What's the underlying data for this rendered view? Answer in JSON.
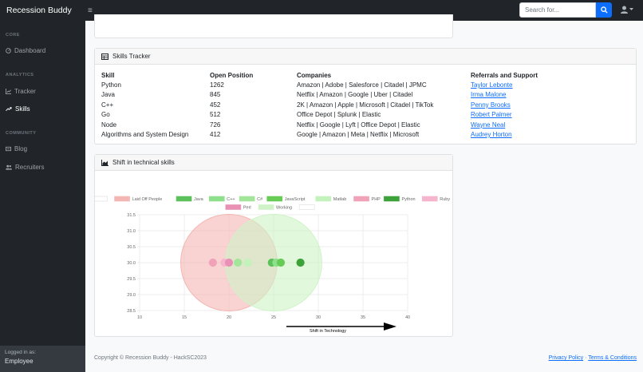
{
  "app": {
    "brand": "Recession Buddy",
    "search_placeholder": "Search for..."
  },
  "sidebar": {
    "sections": [
      {
        "heading": "CORE",
        "items": [
          {
            "label": "Dashboard",
            "icon": "gauge-icon"
          }
        ]
      },
      {
        "heading": "ANALYTICS",
        "items": [
          {
            "label": "Tracker",
            "icon": "chart-line-icon"
          },
          {
            "label": "Skills",
            "icon": "trend-arrow-icon"
          }
        ]
      },
      {
        "heading": "COMMUNITY",
        "items": [
          {
            "label": "Blog",
            "icon": "blog-icon"
          },
          {
            "label": "Recruiters",
            "icon": "users-icon"
          }
        ]
      }
    ],
    "active": "Skills",
    "footer": {
      "logged_in_label": "Logged in as:",
      "user": "Employee"
    }
  },
  "skills_tracker": {
    "title": "Skills Tracker",
    "headers": {
      "skill": "Skill",
      "open": "Open Position",
      "companies": "Companies",
      "referrals": "Referrals and Support"
    },
    "rows": [
      {
        "skill": "Python",
        "open": "1262",
        "companies": "Amazon | Adobe | Salesforce | Citadel | JPMC",
        "referral": "Taylor Lebonte"
      },
      {
        "skill": "Java",
        "open": "845",
        "companies": "Netflix | Amazon | Google | Uber | Citadel",
        "referral": "Irma Malone"
      },
      {
        "skill": "C++",
        "open": "452",
        "companies": "2K | Amazon | Apple | Microsoft | Citadel | TikTok",
        "referral": "Penny Brooks"
      },
      {
        "skill": "Go",
        "open": "512",
        "companies": "Office Depot | Splunk | Elastic",
        "referral": "Robert Palmer"
      },
      {
        "skill": "Node",
        "open": "726",
        "companies": "Netflix | Google | Lyft | Office Depot | Elastic",
        "referral": "Wayne Neal"
      },
      {
        "skill": "Algorithms and System Design",
        "open": "412",
        "companies": "Google | Amazon | Meta | Netflix | Microsoft",
        "referral": "Audrey Horton"
      }
    ]
  },
  "shift_card": {
    "title": "Shift in technical skills"
  },
  "chart_data": {
    "type": "scatter",
    "xlim": [
      10,
      40
    ],
    "ylim": [
      28.5,
      31.5
    ],
    "x_ticks": [
      "10",
      "15",
      "20",
      "25",
      "30",
      "35",
      "40"
    ],
    "y_ticks": [
      "31.5",
      "31.0",
      "30.5",
      "30.0",
      "29.5",
      "29.0",
      "28.5"
    ],
    "grid": true,
    "legend_position": "top",
    "annotation": "Shift in Technology",
    "series": [
      {
        "name": "",
        "color": "#ffffff",
        "kind": "none",
        "points": []
      },
      {
        "name": "Laid Off People",
        "color": "#f4b6b2",
        "kind": "bubble",
        "points": [
          {
            "x": 20,
            "y": 30,
            "r": 5.4
          }
        ]
      },
      {
        "name": "Java",
        "color": "#5cc15b",
        "kind": "point",
        "points": [
          {
            "x": 24.8,
            "y": 30
          }
        ]
      },
      {
        "name": "C++",
        "color": "#8ee08c",
        "kind": "point",
        "points": [
          {
            "x": 25.3,
            "y": 30
          }
        ]
      },
      {
        "name": "C#",
        "color": "#a3e69b",
        "kind": "point",
        "points": [
          {
            "x": 21,
            "y": 30
          }
        ]
      },
      {
        "name": "JavaScript",
        "color": "#66cc55",
        "kind": "point",
        "points": [
          {
            "x": 25.8,
            "y": 30
          }
        ]
      },
      {
        "name": "Matlab",
        "color": "#c4f2bd",
        "kind": "point",
        "points": [
          {
            "x": 22.1,
            "y": 30
          }
        ]
      },
      {
        "name": "PHP",
        "color": "#f0a3b8",
        "kind": "point",
        "points": [
          {
            "x": 18.2,
            "y": 30
          }
        ]
      },
      {
        "name": "Python",
        "color": "#3da23a",
        "kind": "point",
        "points": [
          {
            "x": 28,
            "y": 30
          }
        ]
      },
      {
        "name": "Ruby",
        "color": "#f5b5cc",
        "kind": "point",
        "points": [
          {
            "x": 19.5,
            "y": 30
          }
        ]
      },
      {
        "name": "Perl",
        "color": "#e891b4",
        "kind": "point",
        "points": [
          {
            "x": 20,
            "y": 30
          }
        ]
      },
      {
        "name": "Working",
        "color": "#cff3c7",
        "kind": "bubble",
        "points": [
          {
            "x": 25,
            "y": 30
          }
        ]
      },
      {
        "name": "",
        "color": "#ffffff",
        "kind": "none",
        "points": []
      }
    ]
  },
  "footer": {
    "copyright": "Copyright © Recession Buddy - HackSC2023",
    "privacy": "Privacy Policy",
    "separator": "·",
    "terms": "Terms & Conditions"
  }
}
